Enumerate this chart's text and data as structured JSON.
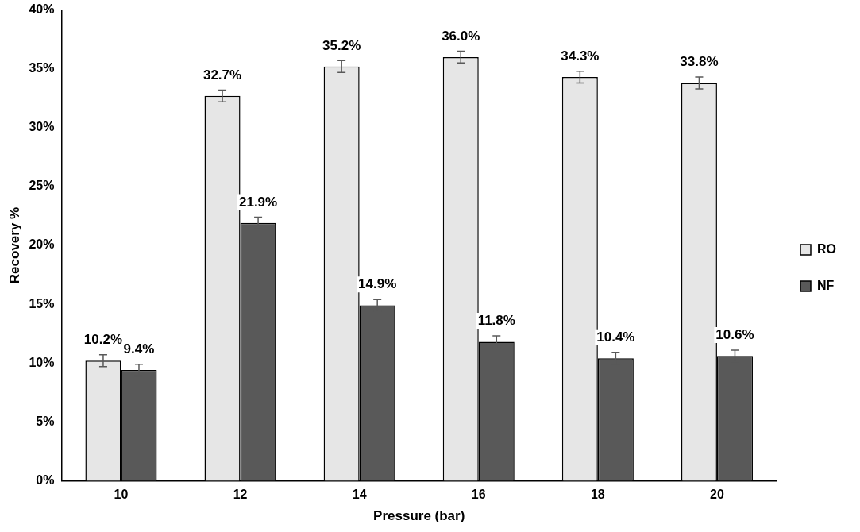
{
  "chart_data": {
    "type": "bar",
    "xlabel": "Pressure (bar)",
    "ylabel": "Recovery %",
    "categories": [
      "10",
      "12",
      "14",
      "16",
      "18",
      "20"
    ],
    "series": [
      {
        "name": "RO",
        "color": "#e6e6e6",
        "values": [
          10.2,
          32.7,
          35.2,
          36.0,
          34.3,
          33.8
        ],
        "errors": [
          0.5,
          0.5,
          0.5,
          0.5,
          0.5,
          0.5
        ],
        "value_labels": [
          "10.2%",
          "32.7%",
          "35.2%",
          "36.0%",
          "34.3%",
          "33.8%"
        ]
      },
      {
        "name": "NF",
        "color": "#595959",
        "values": [
          9.4,
          21.9,
          14.9,
          11.8,
          10.4,
          10.6
        ],
        "errors": [
          0.5,
          0.5,
          0.5,
          0.5,
          0.5,
          0.5
        ],
        "value_labels": [
          "9.4%",
          "21.9%",
          "14.9%",
          "11.8%",
          "10.4%",
          "10.6%"
        ]
      }
    ],
    "ylim": [
      0,
      40
    ],
    "yticks": [
      {
        "value": 0,
        "label": "0%"
      },
      {
        "value": 5,
        "label": "5%"
      },
      {
        "value": 10,
        "label": "10%"
      },
      {
        "value": 15,
        "label": "15%"
      },
      {
        "value": 20,
        "label": "20%"
      },
      {
        "value": 25,
        "label": "25%"
      },
      {
        "value": 30,
        "label": "30%"
      },
      {
        "value": 35,
        "label": "35%"
      },
      {
        "value": 40,
        "label": "40%"
      }
    ],
    "grid": false,
    "legend": "right"
  }
}
